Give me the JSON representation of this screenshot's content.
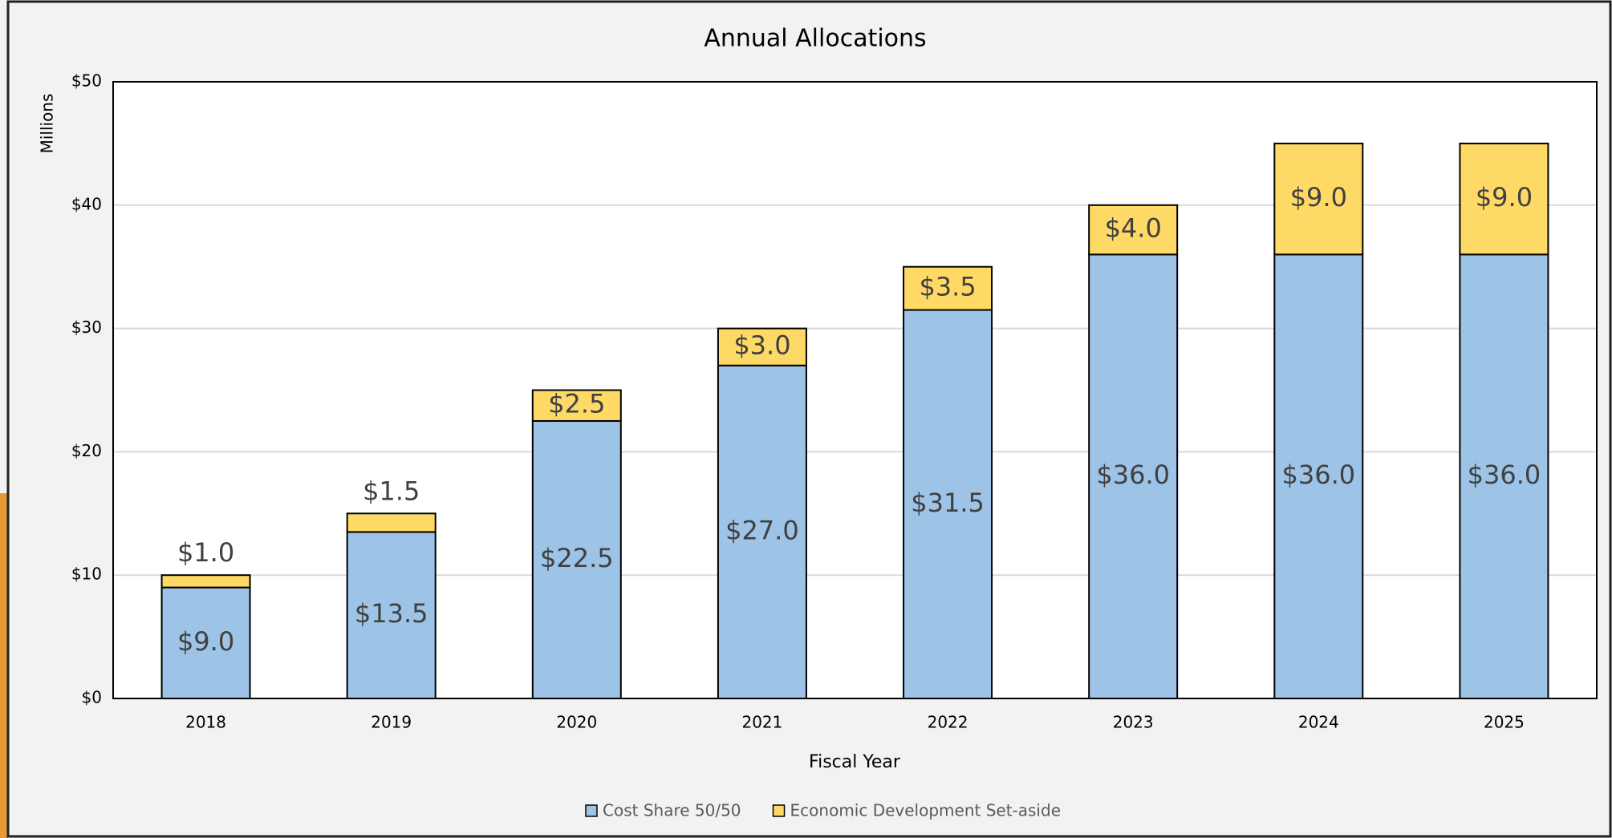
{
  "chart_data": {
    "type": "stacked_bar",
    "title": "Annual Allocations",
    "x_label": "Fiscal Year",
    "y_label": "Millions",
    "categories": [
      "2018",
      "2019",
      "2020",
      "2021",
      "2022",
      "2023",
      "2024",
      "2025"
    ],
    "series": [
      {
        "name": "Cost Share 50/50",
        "color": "#9dc3e6",
        "values": [
          9,
          13.5,
          22.5,
          27,
          31.5,
          36,
          36,
          36
        ],
        "value_labels": [
          "$9.0",
          "$13.5",
          "$22.5",
          "$27.0",
          "$31.5",
          "$36.0",
          "$36.0",
          "$36.0"
        ]
      },
      {
        "name": "Economic Development Set-aside",
        "color": "#ffd966",
        "values": [
          1,
          1.5,
          2.5,
          3,
          3.5,
          4,
          9,
          9
        ],
        "value_labels": [
          "$1.0",
          "$1.5",
          "$2.5",
          "$3.0",
          "$3.5",
          "$4.0",
          "$9.0",
          "$9.0"
        ]
      }
    ],
    "ylim": [
      0,
      50
    ],
    "yticks": [
      {
        "value": 0,
        "label": "$0"
      },
      {
        "value": 10,
        "label": "$10"
      },
      {
        "value": 20,
        "label": "$20"
      },
      {
        "value": 30,
        "label": "$30"
      },
      {
        "value": 40,
        "label": "$40"
      },
      {
        "value": 50,
        "label": "$50"
      }
    ],
    "grid": true,
    "legend": "bottom"
  }
}
